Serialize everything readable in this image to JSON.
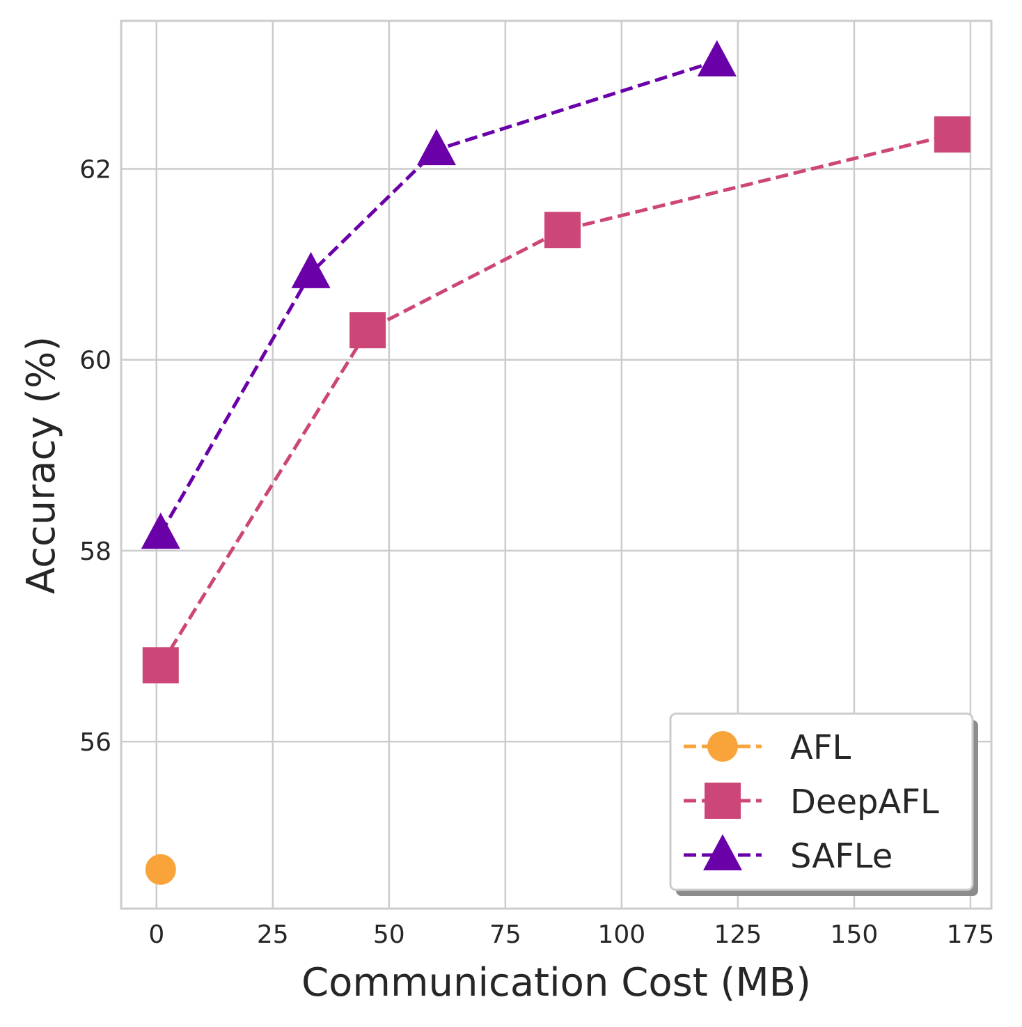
{
  "chart_data": {
    "type": "line",
    "title": "",
    "xlabel": "Communication Cost (MB)",
    "ylabel": "Accuracy (%)",
    "xlim": [
      -7.6,
      179.5
    ],
    "ylim": [
      54.25,
      63.55
    ],
    "xticks": [
      0,
      25,
      50,
      75,
      100,
      125,
      150,
      175
    ],
    "yticks": [
      56,
      58,
      60,
      62
    ],
    "grid": true,
    "legend_position": "bottom-right",
    "series": [
      {
        "name": "AFL",
        "color": "#F9A43A",
        "marker": "circle",
        "linestyle": "dashed",
        "x": [
          0.9
        ],
        "y": [
          54.66
        ]
      },
      {
        "name": "DeepAFL",
        "color": "#CC4778",
        "marker": "square",
        "linestyle": "dashed",
        "x": [
          0.9,
          45.4,
          87.3,
          171.1
        ],
        "y": [
          56.8,
          60.31,
          61.36,
          62.36
        ]
      },
      {
        "name": "SAFLe",
        "color": "#6A00A8",
        "marker": "triangle",
        "linestyle": "dashed",
        "x": [
          0.9,
          33.2,
          60.2,
          120.5
        ],
        "y": [
          58.18,
          60.91,
          62.2,
          63.13
        ]
      }
    ]
  }
}
